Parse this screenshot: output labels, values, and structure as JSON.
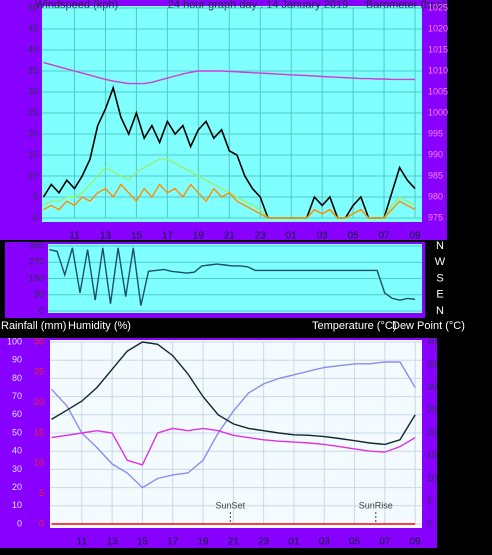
{
  "chart_data": [
    {
      "type": "line",
      "title": "24 hour graph day : 14 January 2019",
      "y_label": "Windspeed (kph)",
      "y2_label": "Barometer (hpa)",
      "x": [
        9,
        9.5,
        10,
        10.5,
        11,
        11.5,
        12,
        12.5,
        13,
        13.5,
        14,
        14.5,
        15,
        15.5,
        16,
        16.5,
        17,
        17.5,
        18,
        18.5,
        19,
        19.5,
        20,
        20.5,
        21,
        21.5,
        22,
        22.5,
        23,
        23.5,
        24,
        24.5,
        25,
        25.5,
        26,
        26.5,
        27,
        27.5,
        28,
        28.5,
        29,
        29.5,
        30,
        30.5,
        31,
        31.5,
        32,
        32.5,
        33
      ],
      "xlim": [
        8.9,
        33.45
      ],
      "xticks": [
        11,
        13,
        15,
        17,
        19,
        21,
        23,
        {
          "value": 25,
          "label": "01"
        },
        {
          "value": 27,
          "label": "03"
        },
        {
          "value": 29,
          "label": "05"
        },
        {
          "value": 31,
          "label": "07"
        },
        {
          "value": 33,
          "label": "09"
        }
      ],
      "ylim": [
        0,
        50
      ],
      "yticks": [
        0,
        5,
        10,
        15,
        20,
        25,
        30,
        35,
        40,
        45,
        50
      ],
      "y2lim": [
        975,
        1025
      ],
      "y2ticks": [
        975,
        980,
        985,
        990,
        995,
        1000,
        1005,
        1010,
        1015,
        1020,
        1025
      ],
      "grid": true,
      "series": [
        {
          "color": "#d23cd2",
          "axis": "y2",
          "values": [
            1012,
            1011.5,
            1011,
            1010.5,
            1010,
            1009.5,
            1009,
            1008.5,
            1008,
            1007.6,
            1007.3,
            1007,
            1007,
            1007,
            1007.3,
            1007.8,
            1008.3,
            1008.8,
            1009.3,
            1009.7,
            1010,
            1010,
            1010,
            1010,
            1009.9,
            1009.8,
            1009.7,
            1009.6,
            1009.5,
            1009.4,
            1009.3,
            1009.2,
            1009.1,
            1009,
            1008.9,
            1008.8,
            1008.7,
            1008.6,
            1008.5,
            1008.4,
            1008.3,
            1008.2,
            1008.2,
            1008.1,
            1008.1,
            1008,
            1008,
            1008,
            1008
          ]
        },
        {
          "color": "#000000",
          "values": [
            5,
            8,
            6,
            9,
            7,
            10,
            14,
            22,
            26,
            31,
            24,
            20,
            25,
            19,
            22,
            18,
            23,
            20,
            22,
            17,
            21,
            23,
            19,
            21,
            16,
            15,
            10,
            7,
            5,
            0,
            0,
            0,
            0,
            0,
            0,
            5,
            3,
            5,
            0,
            0,
            3,
            5,
            0,
            0,
            0,
            6,
            12,
            9,
            7
          ]
        },
        {
          "color": "#98f070",
          "values": [
            3,
            4,
            4,
            5,
            5,
            6,
            8,
            10,
            12,
            11,
            10,
            9,
            11,
            12,
            13,
            14,
            14,
            13,
            12,
            11,
            10,
            9,
            8,
            7,
            6,
            5,
            4,
            3,
            2,
            0,
            0,
            0,
            0,
            0,
            0,
            2,
            1,
            2,
            0,
            0,
            1,
            2,
            0,
            0,
            0,
            3,
            5,
            4,
            3
          ]
        },
        {
          "color": "#ff8c00",
          "values": [
            2,
            3,
            2,
            4,
            3,
            5,
            4,
            6,
            7,
            5,
            8,
            6,
            4,
            7,
            5,
            8,
            6,
            7,
            5,
            8,
            6,
            4,
            7,
            5,
            6,
            4,
            3,
            2,
            1,
            0,
            0,
            0,
            0,
            0,
            0,
            2,
            1,
            2,
            0,
            0,
            1,
            2,
            0,
            0,
            0,
            2,
            4,
            3,
            2
          ]
        }
      ]
    },
    {
      "type": "line",
      "compass_labels": [
        "N",
        "W",
        "S",
        "E",
        "N"
      ],
      "x": [
        9,
        9.5,
        10,
        10.5,
        11,
        11.5,
        12,
        12.5,
        13,
        13.5,
        14,
        14.5,
        15,
        15.5,
        16,
        16.5,
        17,
        17.5,
        18,
        18.5,
        19,
        19.5,
        20,
        20.5,
        21,
        21.5,
        22,
        22.5,
        23,
        23.5,
        24,
        24.5,
        25,
        25.5,
        26,
        26.5,
        27,
        27.5,
        28,
        28.5,
        29,
        29.5,
        30,
        30.5,
        31,
        31.5,
        32,
        32.5,
        33
      ],
      "xlim": [
        8.9,
        33.45
      ],
      "ylim": [
        0,
        360
      ],
      "yticks": [
        0,
        90,
        180,
        270,
        360
      ],
      "grid": true,
      "series": [
        {
          "color": "#1a4f6e",
          "values": [
            340,
            330,
            200,
            350,
            100,
            340,
            60,
            350,
            40,
            350,
            80,
            350,
            30,
            220,
            225,
            230,
            220,
            215,
            210,
            215,
            250,
            255,
            260,
            255,
            250,
            250,
            245,
            225,
            225,
            225,
            225,
            225,
            225,
            225,
            225,
            225,
            225,
            225,
            225,
            225,
            225,
            225,
            225,
            225,
            100,
            70,
            60,
            70,
            65
          ]
        }
      ]
    },
    {
      "type": "line",
      "x": [
        9,
        10,
        11,
        12,
        13,
        14,
        15,
        16,
        17,
        18,
        19,
        20,
        21,
        22,
        23,
        24,
        25,
        26,
        27,
        28,
        29,
        30,
        31,
        32,
        33
      ],
      "xlim": [
        8.9,
        33.45
      ],
      "xticks": [
        11,
        13,
        15,
        17,
        19,
        21,
        23,
        {
          "value": 25,
          "label": "01"
        },
        {
          "value": 27,
          "label": "03"
        },
        {
          "value": 29,
          "label": "05"
        },
        {
          "value": 31,
          "label": "07"
        },
        {
          "value": 33,
          "label": "09"
        }
      ],
      "ylim": [
        0,
        100
      ],
      "yticks": [
        0,
        10,
        20,
        30,
        40,
        50,
        60,
        70,
        80,
        90,
        100
      ],
      "y2lim": [
        0,
        40
      ],
      "y2ticks": [
        0,
        5,
        10,
        15,
        20,
        25,
        30,
        35,
        40
      ],
      "y3lim": [
        0,
        30
      ],
      "y3ticks": [
        0,
        5,
        10,
        15,
        20,
        25,
        30
      ],
      "grid": true,
      "annotations": [
        {
          "text": "SunSet",
          "x": 20.8
        },
        {
          "text": "SunRise",
          "x": 30.4
        }
      ],
      "series": [
        {
          "name": "Rainfall (mm)",
          "color": "#ff0000",
          "axis": "y3",
          "values": [
            0,
            0,
            0,
            0,
            0,
            0,
            0,
            0,
            0,
            0,
            0,
            0,
            0,
            0,
            0,
            0,
            0,
            0,
            0,
            0,
            0,
            0,
            0,
            0,
            0
          ]
        },
        {
          "name": "Humidity (%)",
          "color": "#8c8cf0",
          "values": [
            74,
            65,
            50,
            42,
            33,
            28,
            20,
            25,
            27,
            28,
            35,
            50,
            62,
            72,
            77,
            80,
            82,
            84,
            86,
            87,
            88,
            88,
            89,
            89,
            75
          ]
        },
        {
          "name": "Temperature (°C)",
          "color": "#102828",
          "axis": "y2",
          "values": [
            23,
            25,
            27,
            30,
            34,
            38,
            40,
            39.5,
            37,
            33,
            28,
            24,
            22,
            21,
            20.5,
            20,
            19.6,
            19.5,
            19.2,
            18.8,
            18.3,
            17.8,
            17.5,
            18.5,
            24
          ]
        },
        {
          "name": "Dew Point (°C)",
          "color": "#e030e0",
          "axis": "y2",
          "values": [
            19,
            19.5,
            20,
            20.5,
            20,
            14,
            13,
            20,
            21,
            20.5,
            21,
            20.5,
            19.5,
            19,
            18.5,
            18.2,
            18,
            17.8,
            17.5,
            17,
            16.5,
            16,
            15.8,
            17,
            19
          ]
        }
      ]
    }
  ]
}
